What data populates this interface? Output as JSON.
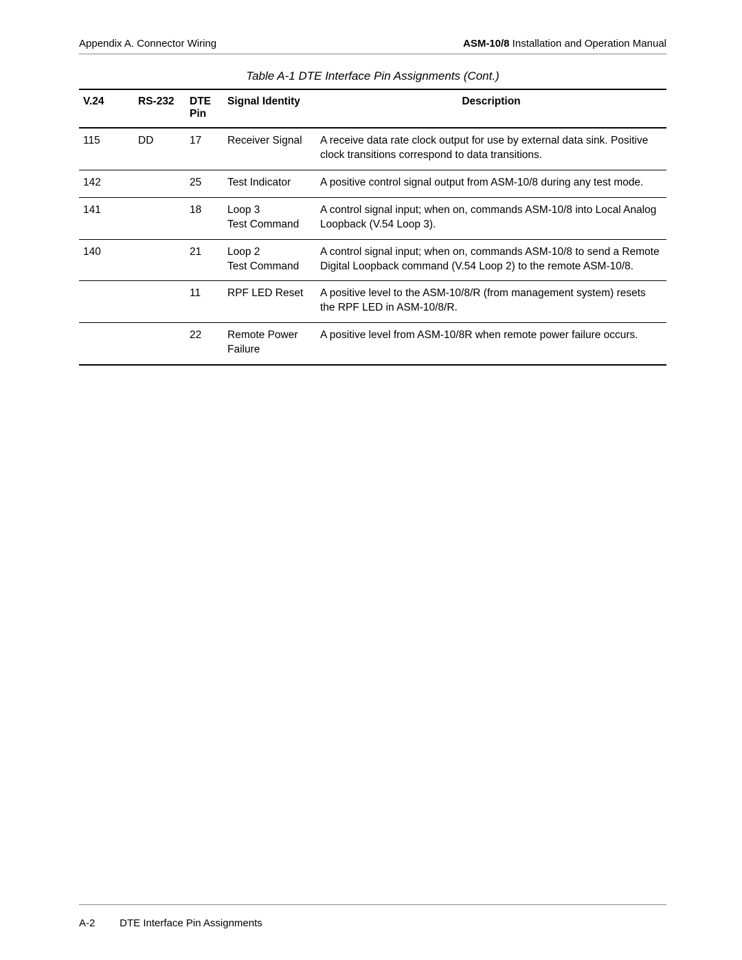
{
  "header": {
    "left": "Appendix A.  Connector Wiring",
    "right_bold": "ASM-10/8",
    "right_rest": " Installation and Operation Manual"
  },
  "table": {
    "caption": "Table A-1  DTE Interface Pin Assignments (Cont.)",
    "columns": {
      "v24": "V.24",
      "rs232": "RS-232",
      "dte": "DTE Pin",
      "signal": "Signal Identity",
      "desc": "Description"
    },
    "rows": [
      {
        "v24": "115",
        "rs232": "DD",
        "dte": "17",
        "signal": "Receiver Signal",
        "desc": "A receive data rate clock output for use by external data sink. Positive clock transitions correspond to data transitions."
      },
      {
        "v24": "142",
        "rs232": "",
        "dte": "25",
        "signal": "Test Indicator",
        "desc": "A positive control signal output from ASM-10/8 during any test mode."
      },
      {
        "v24": "141",
        "rs232": "",
        "dte": "18",
        "signal": "Loop 3\nTest Command",
        "desc": "A control signal input; when on, commands ASM-10/8 into Local Analog Loopback (V.54 Loop 3)."
      },
      {
        "v24": "140",
        "rs232": "",
        "dte": "21",
        "signal": "Loop 2\nTest Command",
        "desc": "A control signal input; when on, commands ASM-10/8 to send a Remote Digital Loopback command (V.54 Loop 2) to the remote ASM-10/8."
      },
      {
        "v24": "",
        "rs232": "",
        "dte": "11",
        "signal": "RPF LED Reset",
        "desc": "A positive level to the ASM-10/8/R (from management system) resets the RPF LED in ASM-10/8/R."
      },
      {
        "v24": "",
        "rs232": "",
        "dte": "22",
        "signal": "Remote Power Failure",
        "desc": "A positive level from ASM-10/8R when remote power failure occurs."
      }
    ]
  },
  "footer": {
    "page_number": "A-2",
    "title": "DTE Interface Pin Assignments"
  }
}
